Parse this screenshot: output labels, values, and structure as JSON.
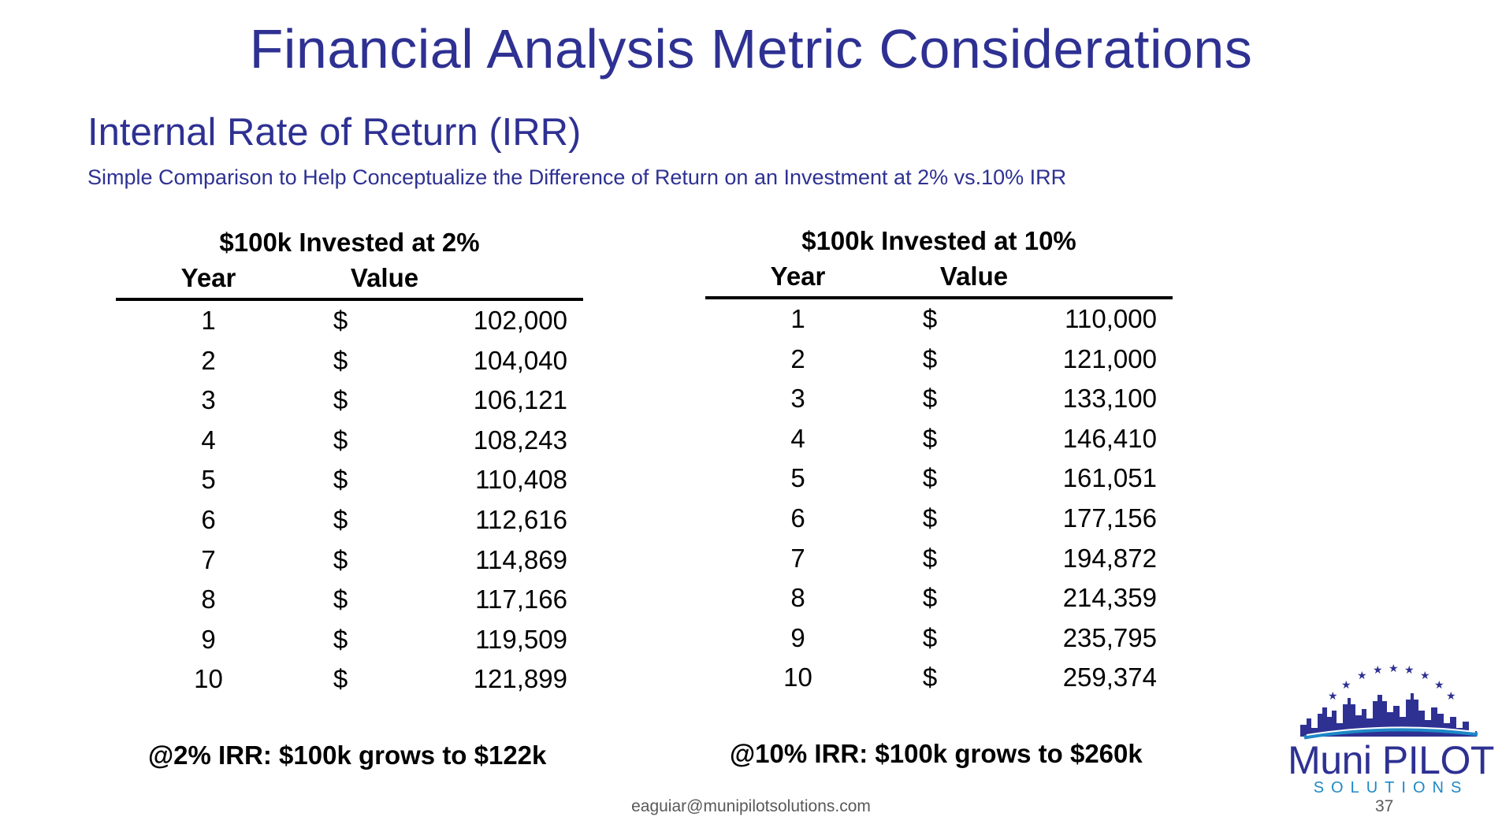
{
  "title": "Financial Analysis Metric Considerations",
  "section": "Internal Rate of Return (IRR)",
  "subtitle": "Simple Comparison to Help Conceptualize the Difference of Return on an Investment at 2% vs.10% IRR",
  "tables": [
    {
      "title": "$100k Invested at 2%",
      "header": {
        "year": "Year",
        "value": "Value"
      },
      "currency": "$",
      "rows": [
        {
          "year": "1",
          "value": "102,000"
        },
        {
          "year": "2",
          "value": "104,040"
        },
        {
          "year": "3",
          "value": "106,121"
        },
        {
          "year": "4",
          "value": "108,243"
        },
        {
          "year": "5",
          "value": "110,408"
        },
        {
          "year": "6",
          "value": "112,616"
        },
        {
          "year": "7",
          "value": "114,869"
        },
        {
          "year": "8",
          "value": "117,166"
        },
        {
          "year": "9",
          "value": "119,509"
        },
        {
          "year": "10",
          "value": "121,899"
        }
      ],
      "summary": "@2% IRR: $100k grows to $122k"
    },
    {
      "title": "$100k Invested at 10%",
      "header": {
        "year": "Year",
        "value": "Value"
      },
      "currency": "$",
      "rows": [
        {
          "year": "1",
          "value": "110,000"
        },
        {
          "year": "2",
          "value": "121,000"
        },
        {
          "year": "3",
          "value": "133,100"
        },
        {
          "year": "4",
          "value": "146,410"
        },
        {
          "year": "5",
          "value": "161,051"
        },
        {
          "year": "6",
          "value": "177,156"
        },
        {
          "year": "7",
          "value": "194,872"
        },
        {
          "year": "8",
          "value": "214,359"
        },
        {
          "year": "9",
          "value": "235,795"
        },
        {
          "year": "10",
          "value": "259,374"
        }
      ],
      "summary": "@10% IRR: $100k grows to $260k"
    }
  ],
  "footer": {
    "email": "eaguiar@munipilotsolutions.com",
    "page": "37"
  },
  "logo": {
    "name": "Muni PILOT",
    "tagline": "SOLUTIONS"
  },
  "colors": {
    "brand": "#2e3192",
    "accent": "#1e88c8"
  }
}
